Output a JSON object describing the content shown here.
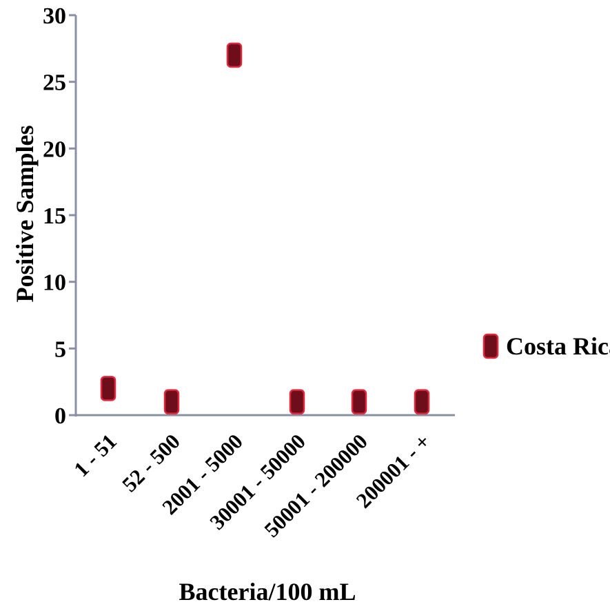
{
  "chart_data": {
    "type": "scatter",
    "categories": [
      "1 - 51",
      "52 - 500",
      "2001 - 5000",
      "30001 - 50000",
      "50001 - 200000",
      "200001 - +"
    ],
    "series": [
      {
        "name": "Costa Rica",
        "values": [
          2,
          1,
          27,
          1,
          1,
          1
        ],
        "color": "#6e0e1a",
        "stroke": "#e0283c"
      }
    ],
    "xlabel": "Bacteria/100 mL",
    "ylabel": "Positive Samples",
    "ylim": [
      0,
      30
    ],
    "yticks": [
      0,
      5,
      10,
      15,
      20,
      25,
      30
    ],
    "grid": false,
    "legend_position": "right",
    "marker": "rounded-square"
  }
}
